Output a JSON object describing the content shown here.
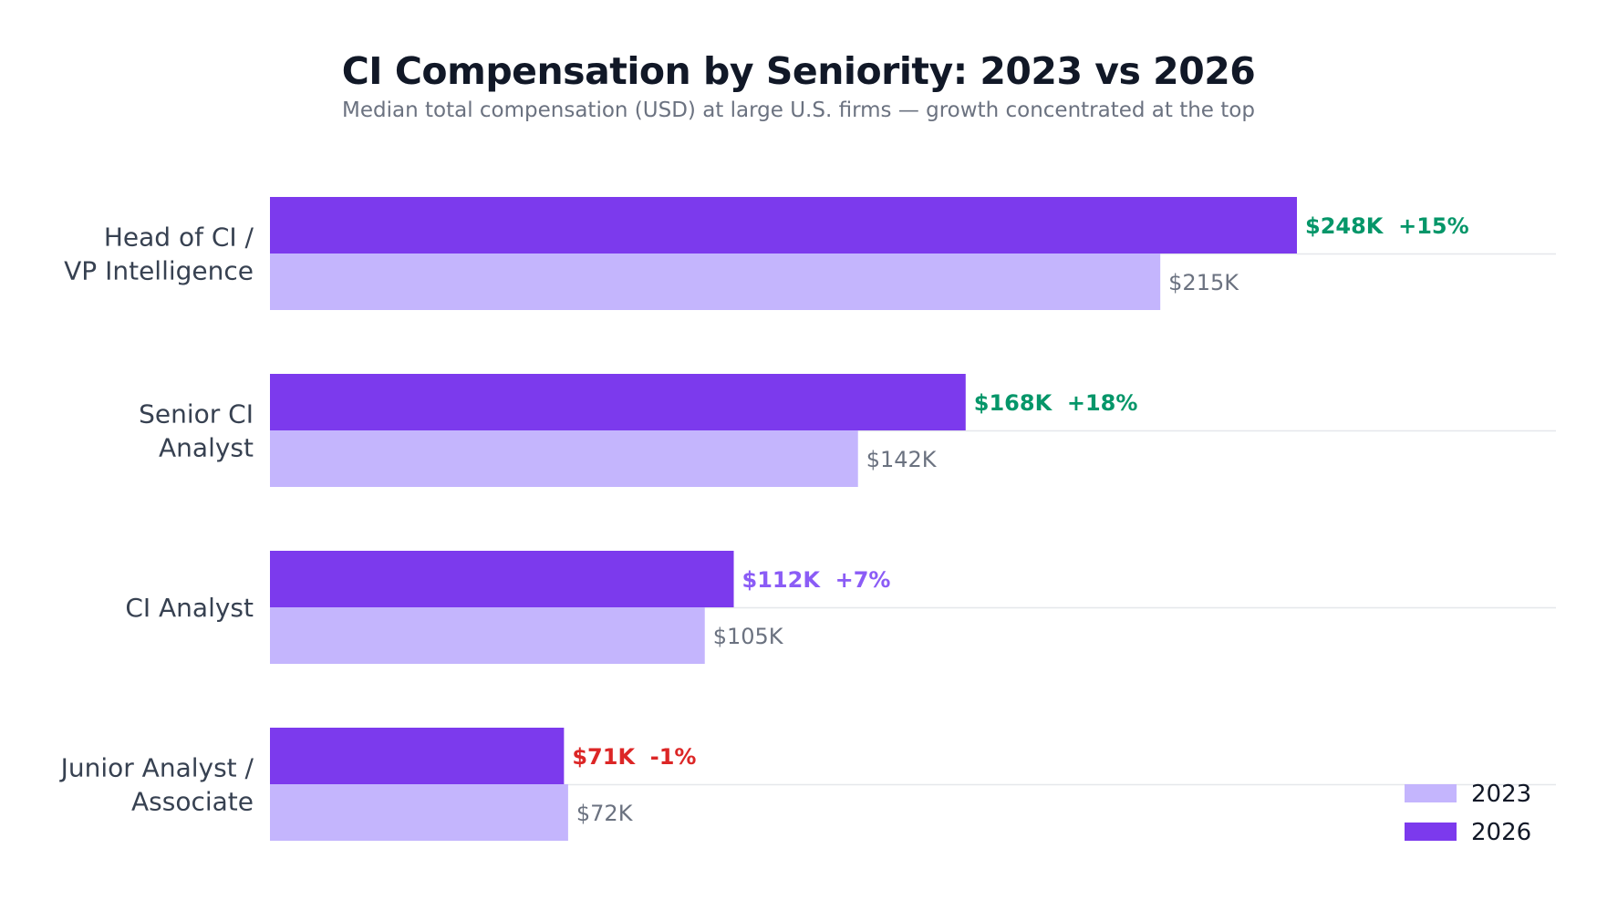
{
  "chart_data": {
    "type": "bar",
    "orientation": "horizontal",
    "title": "CI Compensation by Seniority: 2023 vs 2026",
    "subtitle": "Median total compensation (USD) at large U.S. firms — growth concentrated at the top",
    "categories": [
      [
        "Head of CI /",
        "VP Intelligence"
      ],
      [
        "Senior CI",
        "Analyst"
      ],
      [
        "CI Analyst"
      ],
      [
        "Junior Analyst /",
        "Associate"
      ]
    ],
    "series": [
      {
        "name": "2023",
        "color": "#c4b5fd",
        "values": [
          215,
          142,
          105,
          72
        ],
        "labels": [
          "$215K",
          "$142K",
          "$105K",
          "$72K"
        ]
      },
      {
        "name": "2026",
        "color": "#7c3aed",
        "values": [
          248,
          168,
          112,
          71
        ],
        "labels": [
          "$248K  +15%",
          "$168K  +18%",
          "$112K  +7%",
          "$71K  -1%"
        ],
        "label_colors": [
          "#059669",
          "#059669",
          "#8b5cf6",
          "#dc2626"
        ]
      }
    ],
    "xlim": [
      0,
      270
    ],
    "grid": "horizontal separators",
    "legend": "bottom-right"
  }
}
